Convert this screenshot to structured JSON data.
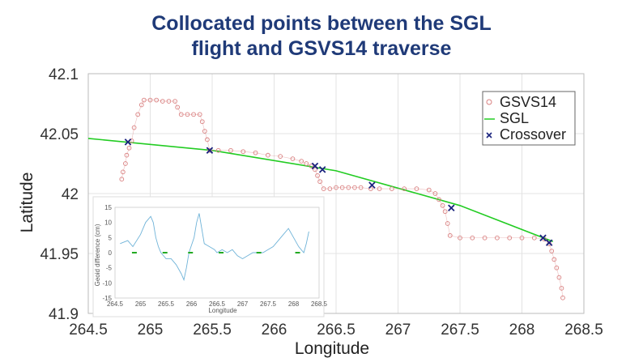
{
  "title": {
    "line1": "Collocated points between the SGL",
    "line2": "flight and GSVS14 traverse"
  },
  "colors": {
    "title": "#1f3a78",
    "gsvs14": "#d98080",
    "sgl": "#22cc22",
    "crossover": "#1a237e",
    "inset_line": "#6fb3d8",
    "inset_marker": "#22aa22"
  },
  "chart_data": [
    {
      "type": "scatter",
      "title": "",
      "xlabel": "Longitude",
      "ylabel": "Latitude",
      "xlim": [
        264.5,
        268.5
      ],
      "ylim": [
        41.9,
        42.1
      ],
      "xticks": [
        "264.5",
        "265",
        "265.5",
        "266",
        "266.5",
        "267",
        "267.5",
        "268",
        "268.5"
      ],
      "yticks": [
        "41.9",
        "41.95",
        "42",
        "42.05",
        "42.1"
      ],
      "grid": true,
      "legend": {
        "position": "top-right",
        "entries": [
          "GSVS14",
          "SGL",
          "Crossover"
        ]
      },
      "series": [
        {
          "name": "GSVS14",
          "marker": "circle",
          "points": [
            [
              264.77,
              42.012
            ],
            [
              264.78,
              42.018
            ],
            [
              264.8,
              42.025
            ],
            [
              264.81,
              42.032
            ],
            [
              264.83,
              42.038
            ],
            [
              264.85,
              42.044
            ],
            [
              264.87,
              42.055
            ],
            [
              264.9,
              42.066
            ],
            [
              264.93,
              42.074
            ],
            [
              264.95,
              42.078
            ],
            [
              265.0,
              42.078
            ],
            [
              265.05,
              42.078
            ],
            [
              265.1,
              42.077
            ],
            [
              265.15,
              42.077
            ],
            [
              265.2,
              42.077
            ],
            [
              265.22,
              42.072
            ],
            [
              265.25,
              42.066
            ],
            [
              265.3,
              42.066
            ],
            [
              265.35,
              42.066
            ],
            [
              265.4,
              42.066
            ],
            [
              265.42,
              42.06
            ],
            [
              265.44,
              42.052
            ],
            [
              265.46,
              42.045
            ],
            [
              265.48,
              42.036
            ],
            [
              265.55,
              42.036
            ],
            [
              265.65,
              42.036
            ],
            [
              265.75,
              42.035
            ],
            [
              265.85,
              42.034
            ],
            [
              265.95,
              42.032
            ],
            [
              266.05,
              42.031
            ],
            [
              266.15,
              42.029
            ],
            [
              266.22,
              42.027
            ],
            [
              266.26,
              42.025
            ],
            [
              266.3,
              42.023
            ],
            [
              266.33,
              42.02
            ],
            [
              266.35,
              42.015
            ],
            [
              266.37,
              42.01
            ],
            [
              266.4,
              42.004
            ],
            [
              266.45,
              42.004
            ],
            [
              266.5,
              42.005
            ],
            [
              266.55,
              42.005
            ],
            [
              266.6,
              42.005
            ],
            [
              266.65,
              42.005
            ],
            [
              266.7,
              42.005
            ],
            [
              266.78,
              42.004
            ],
            [
              266.85,
              42.004
            ],
            [
              266.95,
              42.004
            ],
            [
              267.05,
              42.004
            ],
            [
              267.15,
              42.004
            ],
            [
              267.25,
              42.003
            ],
            [
              267.3,
              42.0
            ],
            [
              267.33,
              41.995
            ],
            [
              267.36,
              41.99
            ],
            [
              267.38,
              41.985
            ],
            [
              267.4,
              41.975
            ],
            [
              267.42,
              41.965
            ],
            [
              267.5,
              41.963
            ],
            [
              267.6,
              41.963
            ],
            [
              267.7,
              41.963
            ],
            [
              267.8,
              41.963
            ],
            [
              267.9,
              41.963
            ],
            [
              268.0,
              41.963
            ],
            [
              268.1,
              41.963
            ],
            [
              268.18,
              41.962
            ],
            [
              268.22,
              41.958
            ],
            [
              268.24,
              41.952
            ],
            [
              268.26,
              41.945
            ],
            [
              268.28,
              41.938
            ],
            [
              268.3,
              41.93
            ],
            [
              268.32,
              41.921
            ],
            [
              268.33,
              41.913
            ]
          ]
        },
        {
          "name": "SGL",
          "marker": "line",
          "points": [
            [
              264.5,
              42.046
            ],
            [
              265.5,
              42.036
            ],
            [
              266.5,
              42.019
            ],
            [
              267.5,
              41.99
            ],
            [
              268.25,
              41.96
            ]
          ]
        },
        {
          "name": "Crossover",
          "marker": "x",
          "points": [
            [
              264.82,
              42.043
            ],
            [
              265.48,
              42.036
            ],
            [
              266.33,
              42.023
            ],
            [
              266.39,
              42.02
            ],
            [
              266.79,
              42.007
            ],
            [
              267.43,
              41.988
            ],
            [
              268.17,
              41.963
            ],
            [
              268.22,
              41.959
            ]
          ]
        }
      ]
    },
    {
      "type": "line",
      "title": "",
      "xlabel": "Longitude",
      "ylabel": "Geoid difference (cm)",
      "xlim": [
        264.5,
        268.5
      ],
      "ylim": [
        -15,
        15
      ],
      "xticks": [
        "264.5",
        "265",
        "265.5",
        "266",
        "266.5",
        "267",
        "267.5",
        "268",
        "268.5"
      ],
      "yticks": [
        "15",
        "10",
        "5",
        "0",
        "-5",
        "-10",
        "-15"
      ],
      "series": [
        {
          "name": "",
          "points": [
            [
              264.6,
              3
            ],
            [
              264.75,
              4
            ],
            [
              264.85,
              2
            ],
            [
              265.0,
              6
            ],
            [
              265.1,
              10
            ],
            [
              265.2,
              12
            ],
            [
              265.25,
              10
            ],
            [
              265.3,
              5
            ],
            [
              265.35,
              2
            ],
            [
              265.4,
              0
            ],
            [
              265.45,
              -1
            ],
            [
              265.5,
              -2
            ],
            [
              265.6,
              -2
            ],
            [
              265.7,
              -4
            ],
            [
              265.8,
              -7
            ],
            [
              265.85,
              -9
            ],
            [
              265.9,
              -5
            ],
            [
              265.95,
              0
            ],
            [
              266.05,
              5
            ],
            [
              266.1,
              10
            ],
            [
              266.15,
              13
            ],
            [
              266.2,
              8
            ],
            [
              266.25,
              3
            ],
            [
              266.35,
              2
            ],
            [
              266.45,
              1
            ],
            [
              266.5,
              0
            ],
            [
              266.6,
              1
            ],
            [
              266.7,
              0
            ],
            [
              266.8,
              1
            ],
            [
              266.9,
              -1
            ],
            [
              267.0,
              -2
            ],
            [
              267.1,
              -1
            ],
            [
              267.2,
              0
            ],
            [
              267.3,
              0
            ],
            [
              267.4,
              0
            ],
            [
              267.5,
              1
            ],
            [
              267.6,
              2
            ],
            [
              267.7,
              4
            ],
            [
              267.8,
              6
            ],
            [
              267.9,
              8
            ],
            [
              268.0,
              5
            ],
            [
              268.1,
              2
            ],
            [
              268.2,
              0
            ],
            [
              268.25,
              3
            ],
            [
              268.3,
              7
            ]
          ]
        }
      ],
      "markers": [
        [
          264.88,
          0
        ],
        [
          265.48,
          0
        ],
        [
          265.98,
          0
        ],
        [
          266.58,
          0
        ],
        [
          267.32,
          0
        ],
        [
          268.08,
          0
        ]
      ]
    }
  ]
}
